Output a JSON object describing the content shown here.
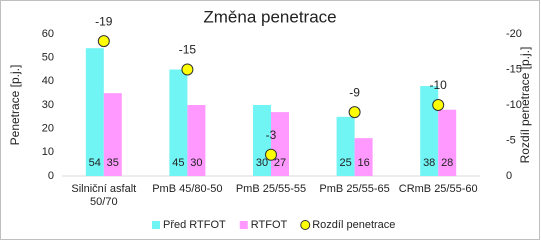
{
  "chart_data": {
    "type": "bar",
    "title": "Změna penetrace",
    "y_label": "Penetrace [p.j.]",
    "y2_label": "Rozdíl penetrace [p.j.]",
    "categories": [
      "Silniční asfalt 50/70",
      "PmB 45/80-50",
      "PmB 25/55-55",
      "PmB 25/55-65",
      "CRmB 25/55-60"
    ],
    "series": [
      {
        "name": "Před RTFOT",
        "color": "#70f4f4",
        "values": [
          54,
          45,
          30,
          25,
          38
        ]
      },
      {
        "name": "RTFOT",
        "color": "#ff99ff",
        "values": [
          35,
          30,
          27,
          16,
          28
        ]
      },
      {
        "name": "Rozdíl penetrace",
        "color": "#ffff00",
        "type": "scatter",
        "axis": "y2",
        "values": [
          -19,
          -15,
          -3,
          -9,
          -10
        ]
      }
    ],
    "ylim": [
      0,
      60
    ],
    "yticks": [
      0,
      10,
      20,
      30,
      40,
      50,
      60
    ],
    "y2lim": [
      0,
      -20
    ],
    "y2ticks": [
      0,
      -5,
      -10,
      -15,
      -20
    ],
    "grid": false,
    "legend": "bottom"
  }
}
